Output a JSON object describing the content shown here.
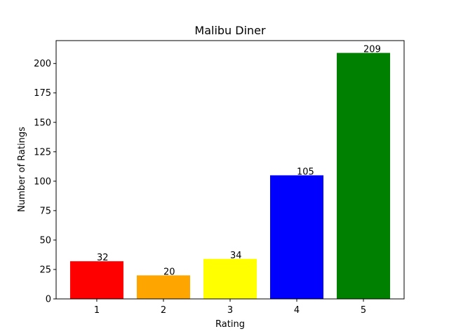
{
  "chart_data": {
    "type": "bar",
    "title": "Malibu Diner",
    "xlabel": "Rating",
    "ylabel": "Number of Ratings",
    "categories": [
      "1",
      "2",
      "3",
      "4",
      "5"
    ],
    "values": [
      32,
      20,
      34,
      105,
      209
    ],
    "colors": [
      "#ff0000",
      "#ffa500",
      "#ffff00",
      "#0000ff",
      "#008000"
    ],
    "ylim": [
      0,
      219.45
    ],
    "yticks": [
      0,
      25,
      50,
      75,
      100,
      125,
      150,
      175,
      200
    ],
    "grid": false,
    "legend": "none"
  }
}
